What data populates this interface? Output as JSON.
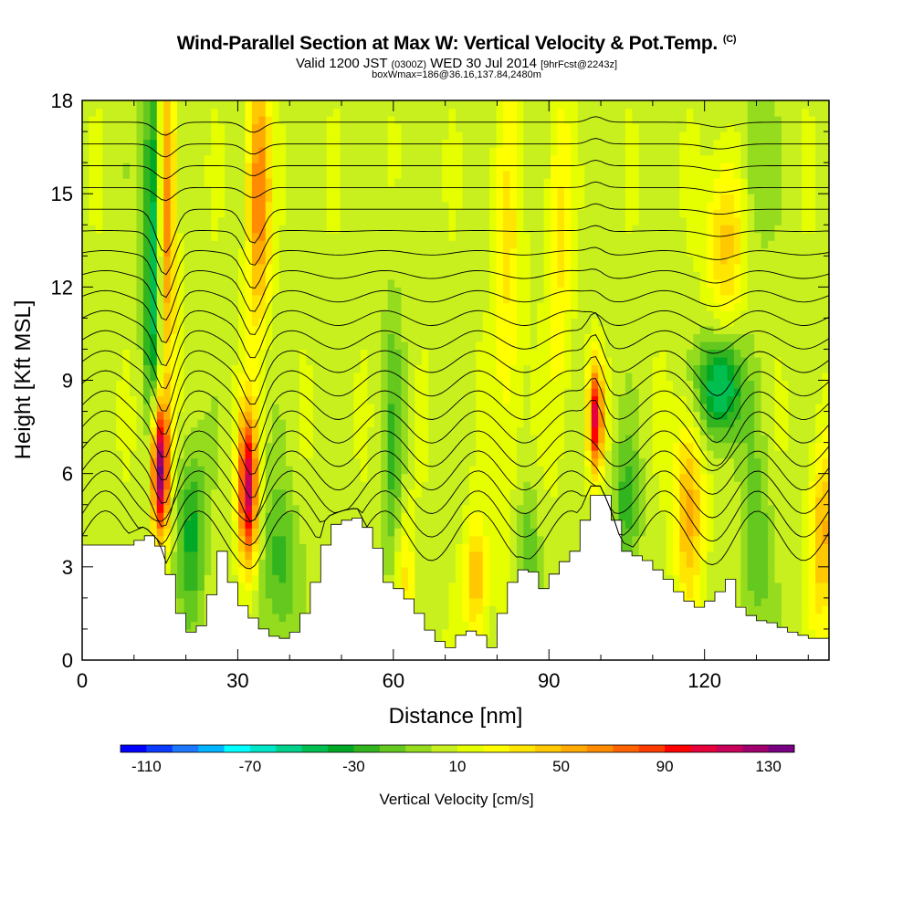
{
  "header": {
    "title": "Wind-Parallel Section at Max W: Vertical Velocity & Pot.Temp.",
    "copyright": "(C)",
    "valid_prefix": "Valid 1200 JST",
    "valid_utc": "(0300Z)",
    "valid_date": "WED 30 Jul 2014",
    "forecast": "[9hrFcst@2243z]",
    "box_info": "boxWmax=186@36.16,137.84,2480m"
  },
  "chart_data": {
    "type": "heatmap",
    "xlabel": "Distance [nm]",
    "ylabel": "Height [Kft MSL]",
    "xlim": [
      0,
      144
    ],
    "ylim": [
      0,
      18
    ],
    "x_ticks": [
      "0",
      "30",
      "60",
      "90",
      "120"
    ],
    "y_ticks": [
      "0",
      "3",
      "6",
      "9",
      "12",
      "15",
      "18"
    ],
    "colorbar": {
      "title": "Vertical Velocity [cm/s]",
      "tick_labels": [
        "-110",
        "-70",
        "-30",
        "10",
        "50",
        "90",
        "130"
      ],
      "bins": [
        -120,
        -110,
        -100,
        -90,
        -80,
        -70,
        -60,
        -50,
        -40,
        -30,
        -20,
        -10,
        0,
        10,
        20,
        30,
        40,
        50,
        60,
        70,
        80,
        90,
        100,
        110,
        120,
        130,
        140
      ],
      "colors": [
        "#0000ff",
        "#0a3cff",
        "#1e78ff",
        "#00b4ff",
        "#00ffff",
        "#00e6c8",
        "#00d28c",
        "#00be50",
        "#00a828",
        "#32b41e",
        "#64c81e",
        "#96dc1e",
        "#c8f01e",
        "#e6ff00",
        "#ffff00",
        "#ffe600",
        "#ffc800",
        "#ffaa00",
        "#ff8c00",
        "#ff6400",
        "#ff3c00",
        "#ff0000",
        "#e6003c",
        "#c8005a",
        "#a0006e",
        "#780082"
      ]
    },
    "terrain_kft": [
      [
        0,
        3.7
      ],
      [
        8,
        3.7
      ],
      [
        12,
        4.0
      ],
      [
        15,
        3.5
      ],
      [
        17,
        2.0
      ],
      [
        19,
        1.0
      ],
      [
        21,
        0.8
      ],
      [
        23,
        1.4
      ],
      [
        26,
        3.5
      ],
      [
        29,
        2.0
      ],
      [
        31,
        1.5
      ],
      [
        33,
        1.2
      ],
      [
        35,
        0.8
      ],
      [
        38,
        0.7
      ],
      [
        41,
        1.0
      ],
      [
        44,
        2.5
      ],
      [
        47,
        4.3
      ],
      [
        50,
        4.5
      ],
      [
        53,
        4.6
      ],
      [
        56,
        3.6
      ],
      [
        58,
        2.5
      ],
      [
        61,
        2.2
      ],
      [
        64,
        1.5
      ],
      [
        67,
        0.7
      ],
      [
        70,
        0.4
      ],
      [
        72,
        0.8
      ],
      [
        75,
        1.0
      ],
      [
        78,
        0.4
      ],
      [
        80,
        1.5
      ],
      [
        82,
        2.5
      ],
      [
        85,
        3.1
      ],
      [
        88,
        2.3
      ],
      [
        91,
        3.0
      ],
      [
        94,
        3.5
      ],
      [
        96,
        4.5
      ],
      [
        98,
        5.3
      ],
      [
        100,
        5.3
      ],
      [
        102,
        4.5
      ],
      [
        104,
        3.5
      ],
      [
        108,
        3.2
      ],
      [
        112,
        2.6
      ],
      [
        115,
        2.0
      ],
      [
        118,
        1.7
      ],
      [
        121,
        2.0
      ],
      [
        124,
        2.6
      ],
      [
        126,
        1.7
      ],
      [
        129,
        1.3
      ],
      [
        132,
        1.2
      ],
      [
        136,
        0.9
      ],
      [
        140,
        0.7
      ],
      [
        144,
        0.7
      ]
    ],
    "updrafts": [
      {
        "x": 15,
        "y": 6.2,
        "sx": 1.2,
        "sy": 1.6,
        "w": 135
      },
      {
        "x": 16,
        "y": 14.0,
        "sx": 1.4,
        "sy": 4.0,
        "w": 75
      },
      {
        "x": 32,
        "y": 5.5,
        "sx": 1.3,
        "sy": 1.8,
        "w": 105
      },
      {
        "x": 34,
        "y": 15.0,
        "sx": 1.6,
        "sy": 3.0,
        "w": 65
      },
      {
        "x": 99,
        "y": 7.8,
        "sx": 1.0,
        "sy": 1.2,
        "w": 95
      },
      {
        "x": 117,
        "y": 5.0,
        "sx": 2.0,
        "sy": 2.2,
        "w": 50
      },
      {
        "x": 124,
        "y": 13.5,
        "sx": 2.5,
        "sy": 2.0,
        "w": 40
      },
      {
        "x": 76,
        "y": 2.6,
        "sx": 1.6,
        "sy": 1.4,
        "w": 45
      },
      {
        "x": 143,
        "y": 4.0,
        "sx": 2.0,
        "sy": 2.2,
        "w": 45
      },
      {
        "x": 62,
        "y": 2.7,
        "sx": 1.5,
        "sy": 1.6,
        "w": 30
      },
      {
        "x": 82,
        "y": 12.0,
        "sx": 2.0,
        "sy": 5.0,
        "w": 25
      },
      {
        "x": 92,
        "y": 13.0,
        "sx": 1.8,
        "sy": 4.0,
        "w": 25
      }
    ],
    "downdrafts": [
      {
        "x": 14,
        "y": 13.5,
        "sx": 1.4,
        "sy": 4.5,
        "w": -75
      },
      {
        "x": 21,
        "y": 4.2,
        "sx": 2.0,
        "sy": 2.0,
        "w": -40
      },
      {
        "x": 38,
        "y": 3.0,
        "sx": 2.5,
        "sy": 2.0,
        "w": -30
      },
      {
        "x": 123,
        "y": 8.8,
        "sx": 3.0,
        "sy": 1.2,
        "w": -65
      },
      {
        "x": 105,
        "y": 5.0,
        "sx": 1.8,
        "sy": 1.6,
        "w": -30
      },
      {
        "x": 60,
        "y": 6.0,
        "sx": 1.5,
        "sy": 4.0,
        "w": -25
      },
      {
        "x": 130,
        "y": 3.5,
        "sx": 2.0,
        "sy": 2.5,
        "w": -25
      },
      {
        "x": 86,
        "y": 3.5,
        "sx": 1.5,
        "sy": 1.5,
        "w": -25
      },
      {
        "x": 130,
        "y": 16.0,
        "sx": 2.0,
        "sy": 2.0,
        "w": -20
      }
    ],
    "isentropes_kft": [
      4.0,
      4.7,
      5.4,
      6.1,
      6.8,
      7.5,
      8.2,
      8.9,
      9.6,
      10.3,
      11.0,
      11.7,
      12.4,
      13.1,
      13.8,
      14.5,
      15.2,
      15.9,
      16.6,
      17.3
    ]
  }
}
